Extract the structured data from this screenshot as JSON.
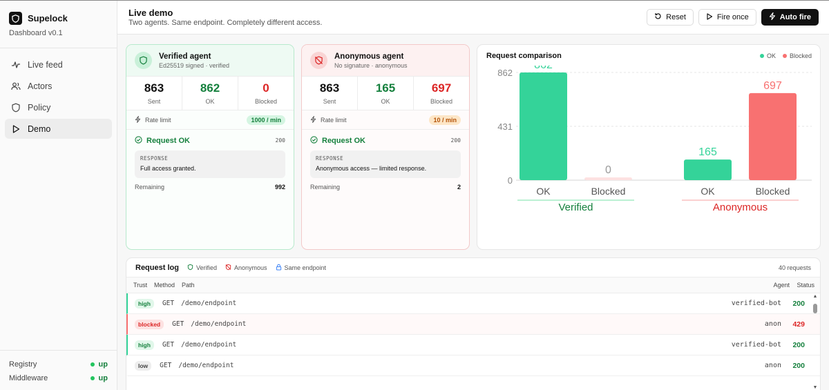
{
  "brand": {
    "name": "Supelock",
    "version": "Dashboard v0.1"
  },
  "nav": [
    {
      "label": "Live feed",
      "icon": "activity-icon"
    },
    {
      "label": "Actors",
      "icon": "users-icon"
    },
    {
      "label": "Policy",
      "icon": "shield-icon"
    },
    {
      "label": "Demo",
      "icon": "play-icon",
      "active": true
    }
  ],
  "services": [
    {
      "name": "Registry",
      "status": "up"
    },
    {
      "name": "Middleware",
      "status": "up"
    }
  ],
  "header": {
    "title": "Live demo",
    "subtitle": "Two agents. Same endpoint. Completely different access.",
    "reset": "Reset",
    "fire_once": "Fire once",
    "auto_fire": "Auto fire"
  },
  "verified": {
    "name": "Verified agent",
    "sub": "Ed25519 signed · verified",
    "sent": "863",
    "sent_label": "Sent",
    "ok": "862",
    "ok_label": "OK",
    "blocked": "0",
    "blocked_label": "Blocked",
    "rate_label": "Rate limit",
    "rate_value": "1000 / min",
    "result": "Request OK",
    "code": "200",
    "response_label": "RESPONSE",
    "response_text": "Full access granted.",
    "remaining_label": "Remaining",
    "remaining_value": "992"
  },
  "anonymous": {
    "name": "Anonymous agent",
    "sub": "No signature · anonymous",
    "sent": "863",
    "sent_label": "Sent",
    "ok": "165",
    "ok_label": "OK",
    "blocked": "697",
    "blocked_label": "Blocked",
    "rate_label": "Rate limit",
    "rate_value": "10 / min",
    "result": "Request OK",
    "code": "200",
    "response_label": "RESPONSE",
    "response_text": "Anonymous access — limited response.",
    "remaining_label": "Remaining",
    "remaining_value": "2"
  },
  "chart_data": {
    "type": "bar",
    "title": "Request comparison",
    "legend": [
      "OK",
      "Blocked"
    ],
    "legend_colors": [
      "#34d399",
      "#f87171"
    ],
    "groups": [
      "Verified",
      "Anonymous"
    ],
    "categories": [
      "OK",
      "Blocked"
    ],
    "series": [
      {
        "name": "OK",
        "values": [
          862,
          165
        ]
      },
      {
        "name": "Blocked",
        "values": [
          0,
          697
        ]
      }
    ],
    "y_ticks": [
      0,
      431,
      862
    ],
    "ylim": [
      0,
      862
    ],
    "legend_position": "top-right",
    "grid": true
  },
  "log": {
    "title": "Request log",
    "tags": [
      {
        "label": "Verified",
        "icon": "shield-icon"
      },
      {
        "label": "Anonymous",
        "icon": "shield-off-icon"
      },
      {
        "label": "Same endpoint",
        "icon": "lock-icon"
      }
    ],
    "count": "40 requests",
    "columns": {
      "trust": "Trust",
      "method": "Method",
      "path": "Path",
      "agent": "Agent",
      "status": "Status"
    },
    "rows": [
      {
        "trust": "high",
        "method": "GET",
        "path": "/demo/endpoint",
        "agent": "verified-bot",
        "status": "200"
      },
      {
        "trust": "blocked",
        "method": "GET",
        "path": "/demo/endpoint",
        "agent": "anon",
        "status": "429"
      },
      {
        "trust": "high",
        "method": "GET",
        "path": "/demo/endpoint",
        "agent": "verified-bot",
        "status": "200"
      },
      {
        "trust": "low",
        "method": "GET",
        "path": "/demo/endpoint",
        "agent": "anon",
        "status": "200"
      }
    ]
  },
  "colors": {
    "ok": "#34d399",
    "blocked": "#f87171",
    "ok_text": "#15803d",
    "blocked_text": "#dc2626"
  }
}
